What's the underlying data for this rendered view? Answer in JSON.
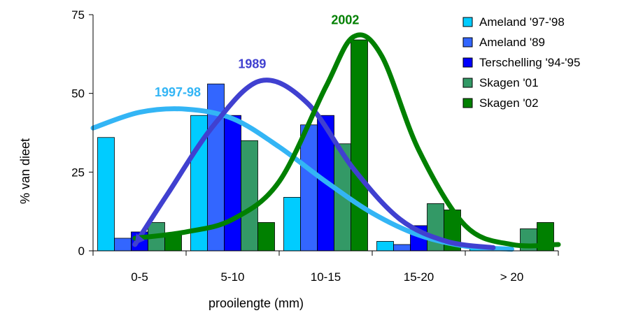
{
  "chart_data": {
    "type": "bar",
    "xlabel": "prooilengte (mm)",
    "ylabel": "% van dieet",
    "ylim": [
      0,
      75
    ],
    "yticks": [
      "0",
      "25",
      "50",
      "75"
    ],
    "categories": [
      "0-5",
      "5-10",
      "10-15",
      "15-20",
      "> 20"
    ],
    "legend_position": "top-right",
    "series": [
      {
        "name": "Ameland '97-'98",
        "color": "#00CCFF",
        "values": [
          36,
          43,
          17,
          3,
          1
        ]
      },
      {
        "name": "Ameland '89",
        "color": "#3366FF",
        "values": [
          4,
          53,
          40,
          2,
          0
        ]
      },
      {
        "name": "Terschelling '94-'95",
        "color": "#0000FF",
        "values": [
          6,
          43,
          43,
          8,
          0
        ]
      },
      {
        "name": "Skagen '01",
        "color": "#339966",
        "values": [
          9,
          35,
          34,
          15,
          7
        ]
      },
      {
        "name": "Skagen  '02",
        "color": "#008000",
        "values": [
          5,
          9,
          67,
          13,
          9
        ]
      }
    ],
    "curves": [
      {
        "label": "1997-98",
        "color": "#33B5F5",
        "x": [
          -0.5,
          0,
          0.5,
          1,
          1.5,
          2,
          2.5,
          3,
          3.5,
          4
        ],
        "y": [
          39,
          44,
          45,
          42,
          33,
          22,
          12,
          5,
          1.5,
          0.5
        ]
      },
      {
        "label": "1989",
        "color": "#4040D0",
        "x": [
          -0.05,
          0.3,
          0.8,
          1.3,
          1.8,
          2.3,
          2.8,
          3.3,
          3.8
        ],
        "y": [
          2,
          18,
          40,
          54,
          47,
          26,
          10,
          3,
          1
        ]
      },
      {
        "label": "2002",
        "color": "#008000",
        "x": [
          -0.05,
          0.5,
          1,
          1.5,
          2,
          2.3,
          2.6,
          3,
          3.5,
          4,
          4.5
        ],
        "y": [
          4,
          6,
          10,
          22,
          52,
          68,
          62,
          32,
          8,
          2,
          2
        ]
      }
    ]
  }
}
